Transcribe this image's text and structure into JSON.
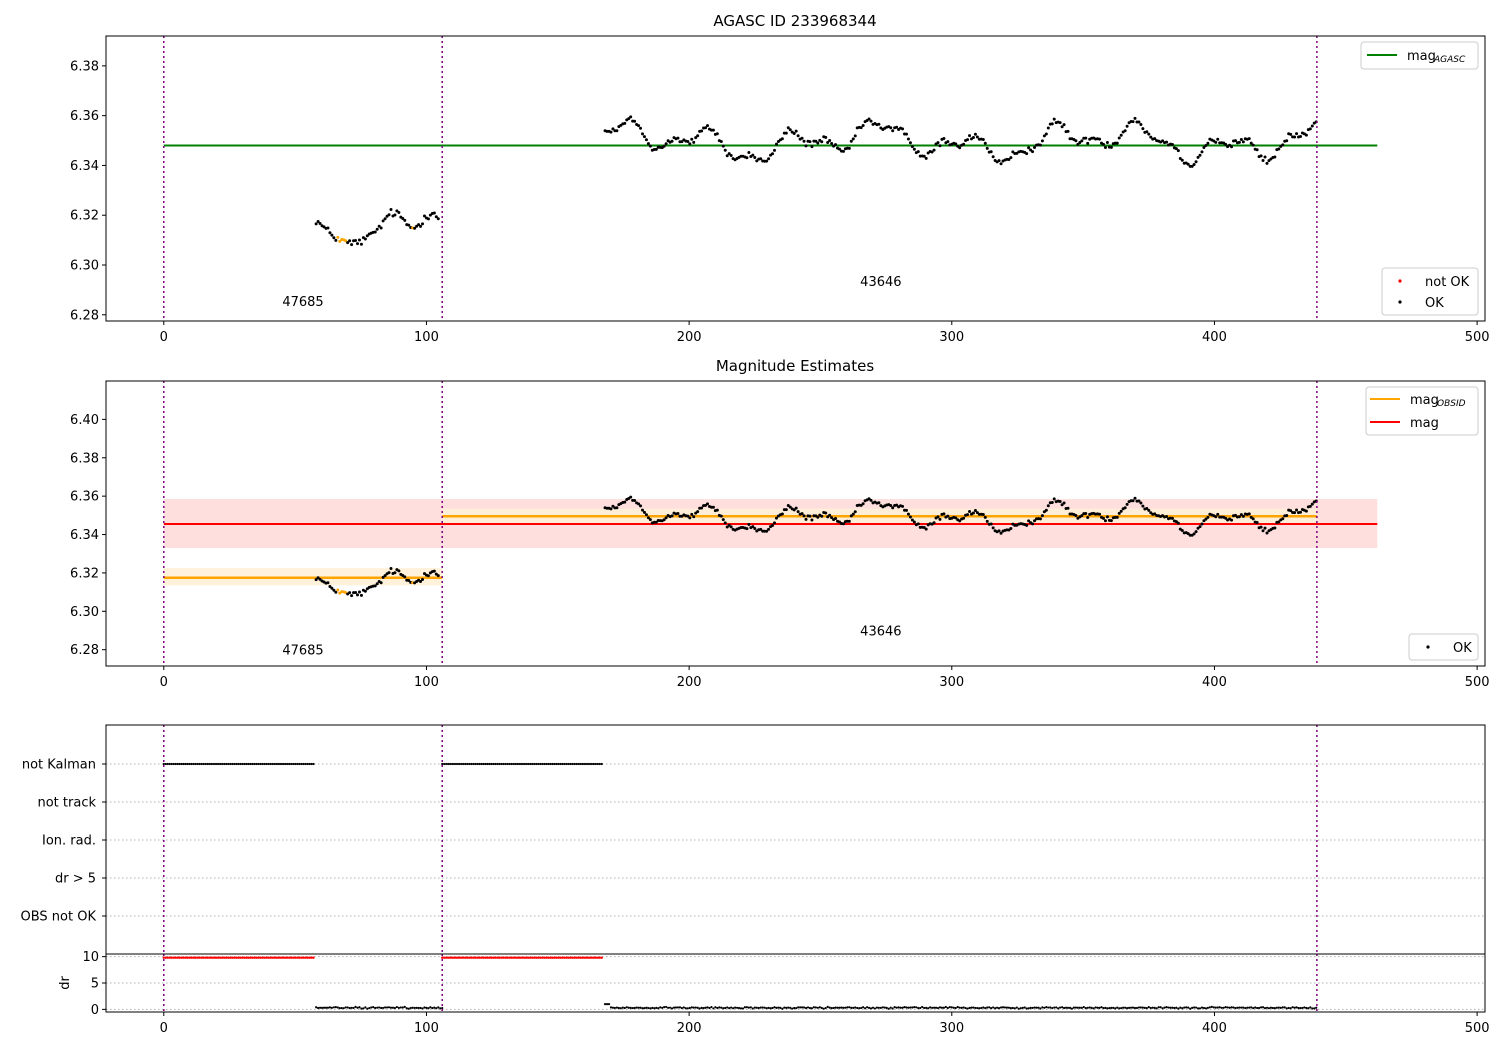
{
  "chart_data": [
    {
      "type": "scatter",
      "title": "AGASC ID 233968344",
      "xlim": [
        -22,
        503
      ],
      "ylim": [
        6.2775,
        6.392
      ],
      "x_ticks": [
        0,
        100,
        200,
        300,
        400,
        500
      ],
      "y_ticks": [
        6.28,
        6.3,
        6.32,
        6.34,
        6.36,
        6.38
      ],
      "obs_boundaries": [
        0,
        106,
        439
      ],
      "obs_labels": [
        {
          "text": "47685",
          "x": 53,
          "y": 6.2835
        },
        {
          "text": "43646",
          "x": 273,
          "y": 6.2915
        }
      ],
      "mag_agasc": {
        "value": 6.348,
        "x_range": [
          0,
          462
        ],
        "color": "#008000"
      },
      "legend_lines": {
        "items": [
          {
            "label": "mag",
            "sub": "AGASC",
            "color": "#008000"
          }
        ],
        "position": "upper right"
      },
      "legend_points": {
        "items": [
          {
            "label": "not OK",
            "color": "#ff0000"
          },
          {
            "label": "OK",
            "color": "#000000"
          }
        ],
        "position": "lower right"
      },
      "outlier_color": "#ffa500",
      "colors": {
        "boundary": "#800080",
        "grid": "#b0b0b0"
      }
    },
    {
      "type": "scatter",
      "title": "Magnitude Estimates",
      "xlim": [
        -22,
        503
      ],
      "ylim": [
        6.2715,
        6.42
      ],
      "x_ticks": [
        0,
        100,
        200,
        300,
        400,
        500
      ],
      "y_ticks": [
        6.28,
        6.3,
        6.32,
        6.34,
        6.36,
        6.38,
        6.4
      ],
      "obs_boundaries": [
        0,
        106,
        439
      ],
      "obs_labels": [
        {
          "text": "47685",
          "x": 53,
          "y": 6.2775
        },
        {
          "text": "43646",
          "x": 273,
          "y": 6.2875
        }
      ],
      "mag_total": {
        "value": 6.3455,
        "band": [
          6.333,
          6.3585
        ],
        "x_range": [
          0,
          462
        ],
        "color": "#ff0000",
        "band_color": "#ffdede"
      },
      "mag_obsid": [
        {
          "x_range": [
            0,
            106
          ],
          "value": 6.3175,
          "band": [
            6.3135,
            6.3225
          ]
        },
        {
          "x_range": [
            106,
            439
          ],
          "value": 6.3495,
          "band": [
            6.3455,
            6.3535
          ]
        }
      ],
      "obsid_color": "#ffa500",
      "obsid_band_color": "#fff0d6",
      "legend_lines": {
        "items": [
          {
            "label": "mag",
            "sub": "OBSID",
            "color": "#ffa500"
          },
          {
            "label": "mag",
            "sub": "",
            "color": "#ff0000"
          }
        ],
        "position": "upper right"
      },
      "legend_points": {
        "items": [
          {
            "label": "OK",
            "color": "#000000"
          }
        ],
        "position": "lower right"
      }
    },
    {
      "type": "scatter",
      "title": "",
      "xlim": [
        -22,
        503
      ],
      "category_rows": [
        "not Kalman",
        "not track",
        "Ion. rad.",
        "dr > 5",
        "OBS not OK"
      ],
      "flag_segments": [
        {
          "row": "not Kalman",
          "x_range": [
            0,
            57
          ]
        },
        {
          "row": "not Kalman",
          "x_range": [
            106,
            167
          ]
        }
      ]
    },
    {
      "type": "scatter",
      "title": "",
      "ylabel": "dr",
      "xlim": [
        -22,
        503
      ],
      "ylim": [
        -0.5,
        10.5
      ],
      "x_ticks": [
        0,
        100,
        200,
        300,
        400,
        500
      ],
      "y_ticks": [
        0,
        5,
        10
      ],
      "red_segments": [
        {
          "x_range": [
            0,
            57
          ],
          "value": 9.8
        },
        {
          "x_range": [
            106,
            167
          ],
          "value": 9.8
        }
      ],
      "tracked_ranges": [
        [
          58,
          106
        ],
        [
          168,
          439
        ]
      ],
      "dr_typical": 0.3
    }
  ]
}
